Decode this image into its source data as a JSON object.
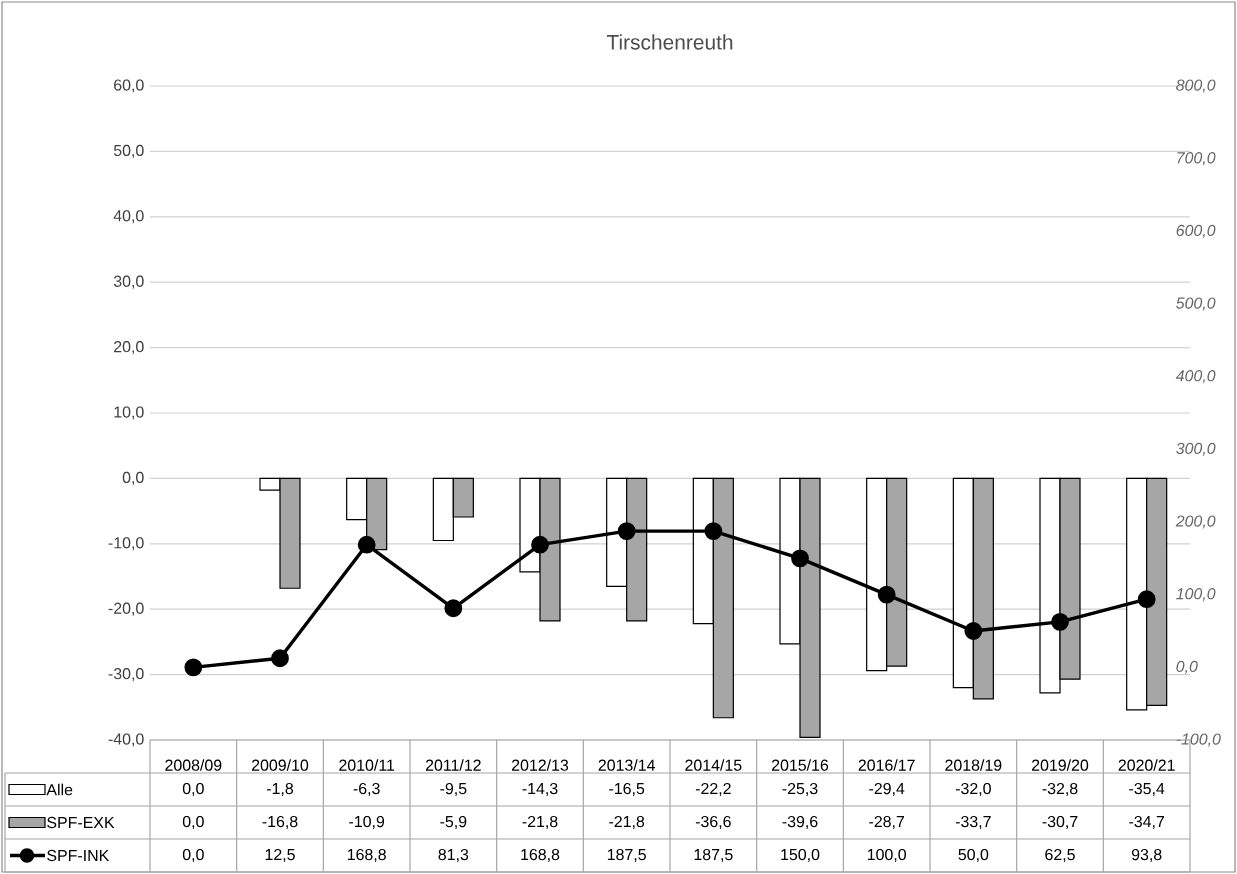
{
  "chart_data": {
    "type": "bar",
    "title": "Tirschenreuth",
    "categories": [
      "2008/09",
      "2009/10",
      "2010/11",
      "2011/12",
      "2012/13",
      "2013/14",
      "2014/15",
      "2015/16",
      "2016/17",
      "2018/19",
      "2019/20",
      "2020/21"
    ],
    "series": [
      {
        "name": "Alle",
        "type": "bar",
        "color": "#ffffff",
        "values": [
          0.0,
          -1.8,
          -6.3,
          -9.5,
          -14.3,
          -16.5,
          -22.2,
          -25.3,
          -29.4,
          -32.0,
          -32.8,
          -35.4
        ],
        "value_labels": [
          "0,0",
          "-1,8",
          "-6,3",
          "-9,5",
          "-14,3",
          "-16,5",
          "-22,2",
          "-25,3",
          "-29,4",
          "-32,0",
          "-32,8",
          "-35,4"
        ]
      },
      {
        "name": "SPF-EXK",
        "type": "bar",
        "color": "#a6a6a6",
        "values": [
          0.0,
          -16.8,
          -10.9,
          -5.9,
          -21.8,
          -21.8,
          -36.6,
          -39.6,
          -28.7,
          -33.7,
          -30.7,
          -34.7
        ],
        "value_labels": [
          "0,0",
          "-16,8",
          "-10,9",
          "-5,9",
          "-21,8",
          "-21,8",
          "-36,6",
          "-39,6",
          "-28,7",
          "-33,7",
          "-30,7",
          "-34,7"
        ]
      },
      {
        "name": "SPF-INK",
        "type": "line",
        "axis": "y2",
        "color": "#000000",
        "marker": "circle",
        "values": [
          0.0,
          12.5,
          168.8,
          81.3,
          168.8,
          187.5,
          187.5,
          150.0,
          100.0,
          50.0,
          62.5,
          93.8
        ],
        "value_labels": [
          "0,0",
          "12,5",
          "168,8",
          "81,3",
          "168,8",
          "187,5",
          "187,5",
          "150,0",
          "100,0",
          "50,0",
          "62,5",
          "93,8"
        ]
      }
    ],
    "ylim": [
      -40,
      60
    ],
    "yticks": [
      {
        "value": -40,
        "label": "-40,0"
      },
      {
        "value": -30,
        "label": "-30,0"
      },
      {
        "value": -20,
        "label": "-20,0"
      },
      {
        "value": -10,
        "label": "-10,0"
      },
      {
        "value": 0,
        "label": "0,0"
      },
      {
        "value": 10,
        "label": "10,0"
      },
      {
        "value": 20,
        "label": "20,0"
      },
      {
        "value": 30,
        "label": "30,0"
      },
      {
        "value": 40,
        "label": "40,0"
      },
      {
        "value": 50,
        "label": "50,0"
      },
      {
        "value": 60,
        "label": "60,0"
      }
    ],
    "y2lim": [
      -100,
      800
    ],
    "y2ticks": [
      {
        "value": -100,
        "label": "-100,0"
      },
      {
        "value": 0,
        "label": "0,0"
      },
      {
        "value": 100,
        "label": "100,0"
      },
      {
        "value": 200,
        "label": "200,0"
      },
      {
        "value": 300,
        "label": "300,0"
      },
      {
        "value": 400,
        "label": "400,0"
      },
      {
        "value": 500,
        "label": "500,0"
      },
      {
        "value": 600,
        "label": "600,0"
      },
      {
        "value": 700,
        "label": "700,0"
      },
      {
        "value": 800,
        "label": "800,0"
      }
    ],
    "grid": "y",
    "legend": "bottom"
  }
}
